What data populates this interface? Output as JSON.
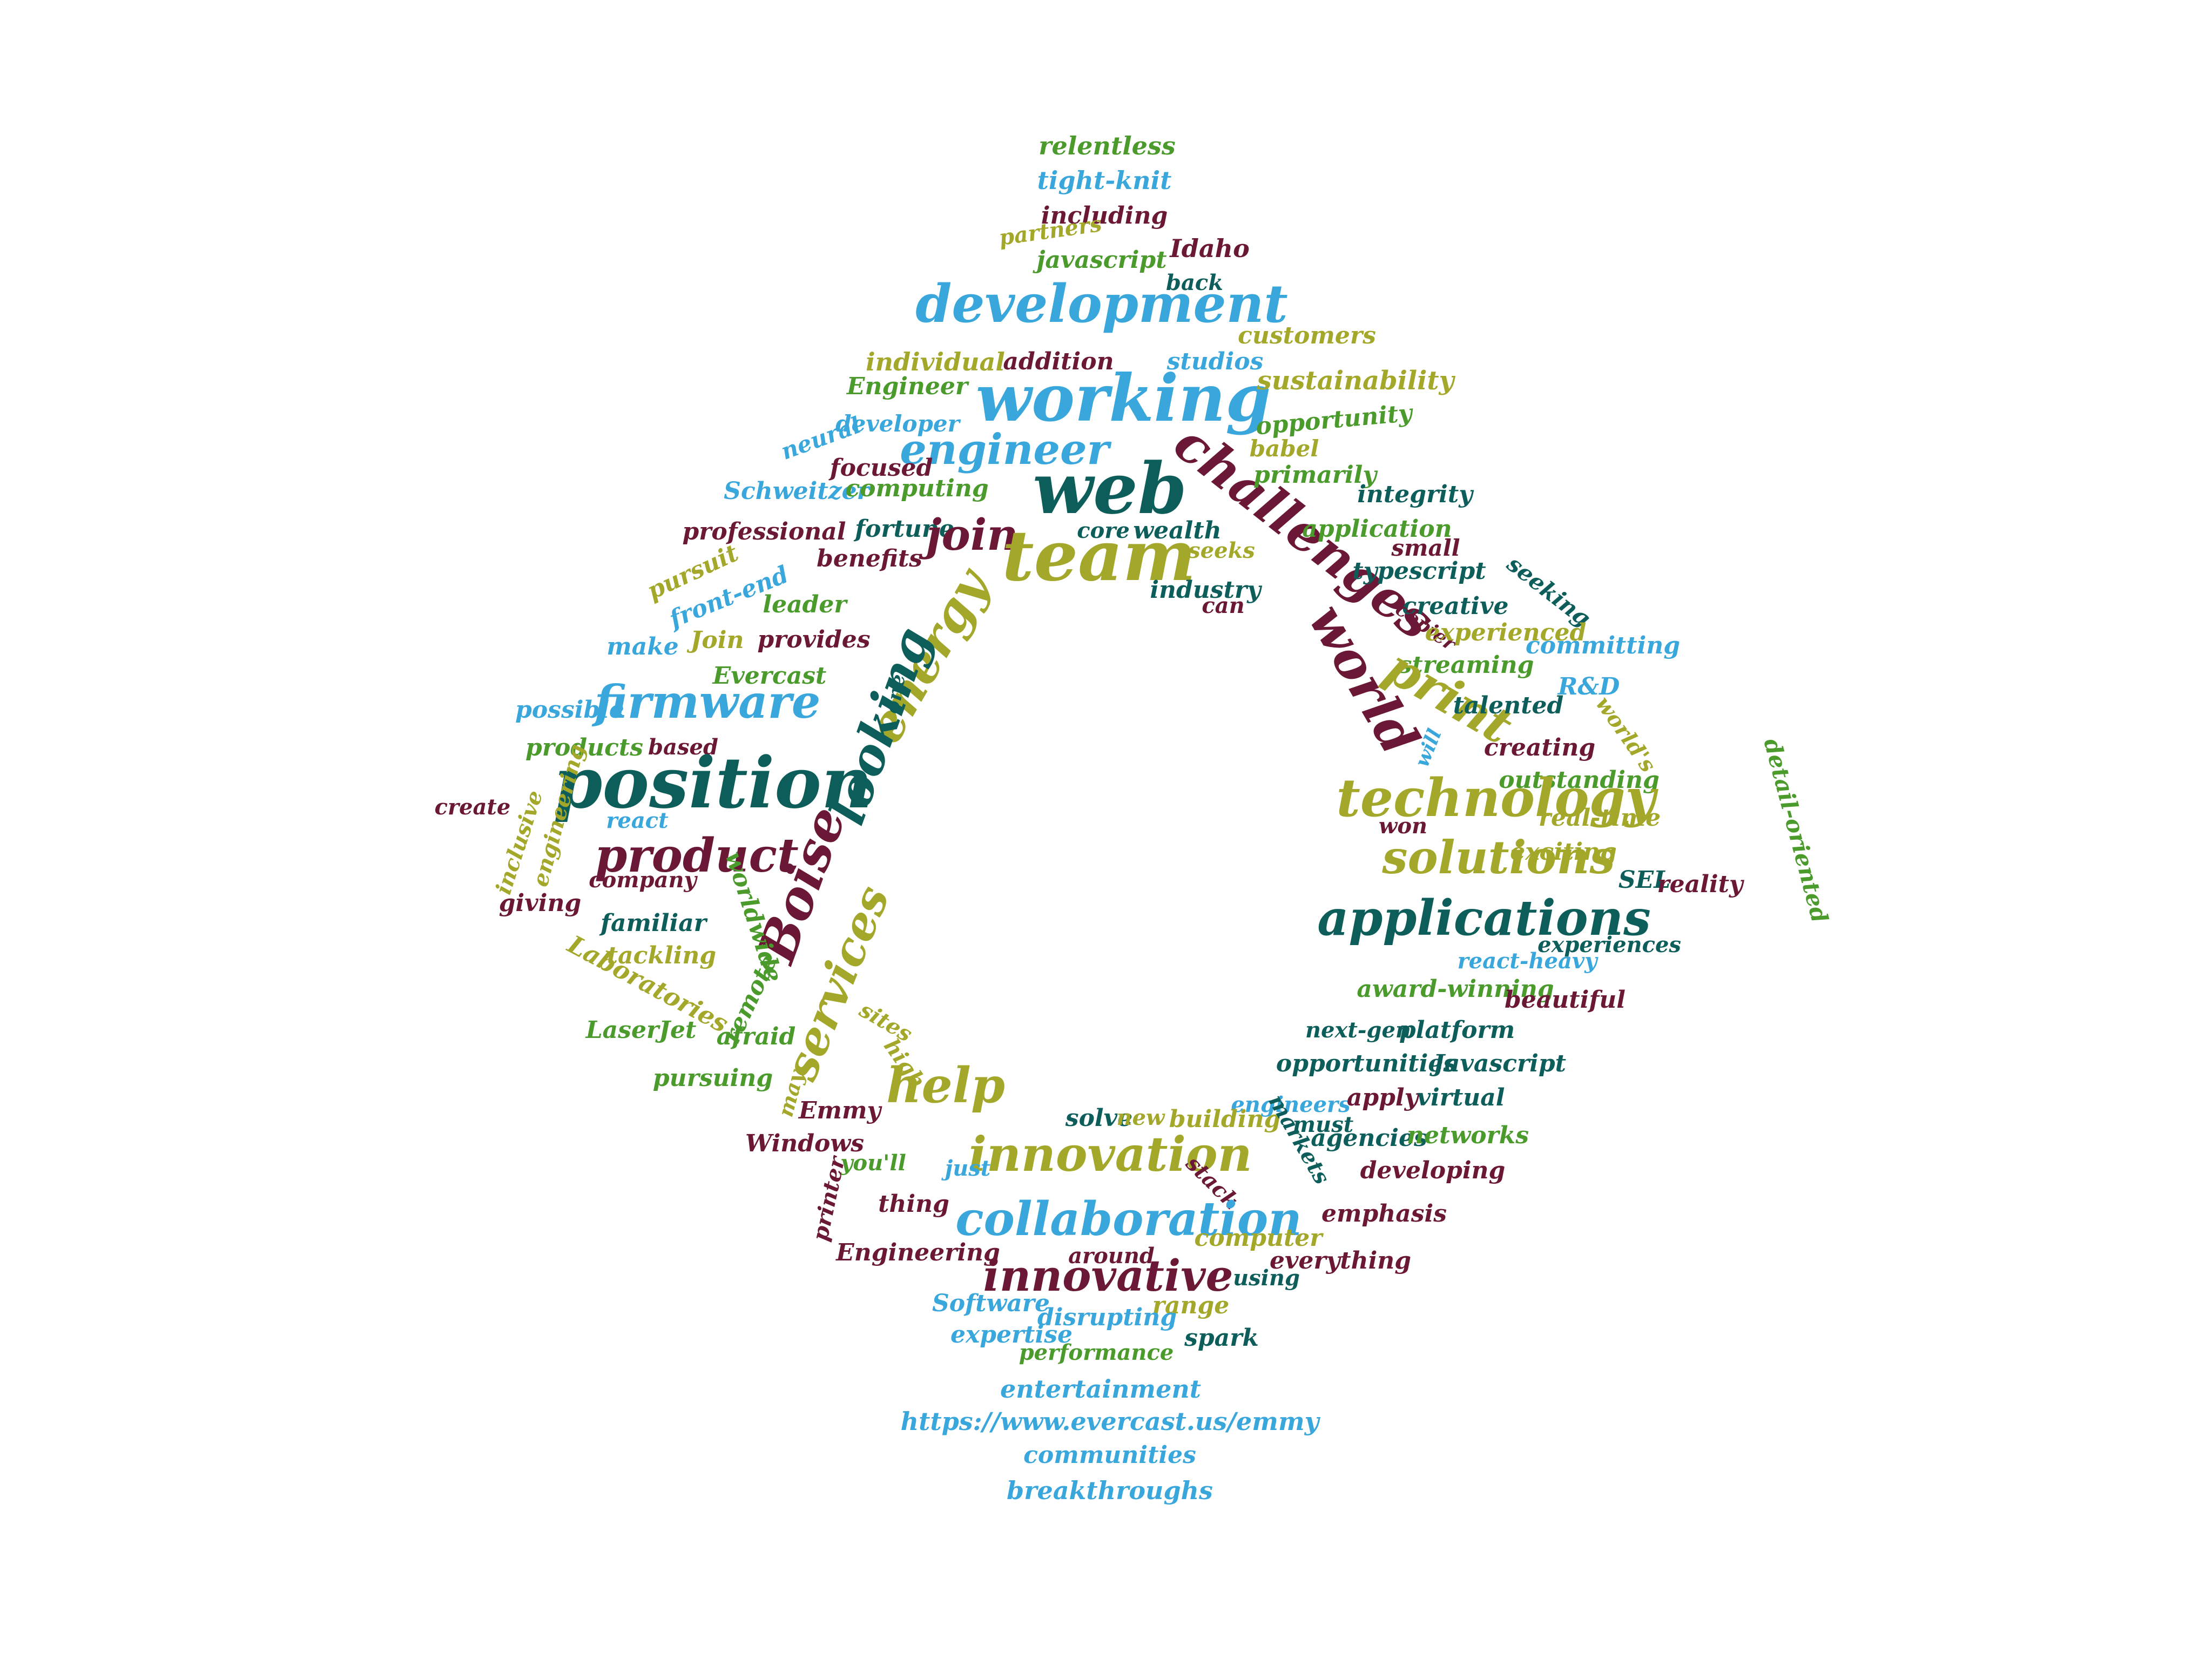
{
  "palette": {
    "teal": "#0d5e5a",
    "sky": "#3aa7dc",
    "olive": "#a3a82a",
    "green": "#4a9a2c",
    "maroon": "#6b1836"
  },
  "words": [
    {
      "text": "relentless",
      "color": "#4a9a2c"
    },
    {
      "text": "tight-knit",
      "color": "#3aa7dc"
    },
    {
      "text": "including",
      "color": "#6b1836"
    },
    {
      "text": "partners",
      "color": "#a3a82a"
    },
    {
      "text": "javascript",
      "color": "#4a9a2c"
    },
    {
      "text": "Idaho",
      "color": "#6b1836"
    },
    {
      "text": "back",
      "color": "#0d5e5a"
    },
    {
      "text": "development",
      "color": "#3aa7dc"
    },
    {
      "text": "customers",
      "color": "#a3a82a"
    },
    {
      "text": "individual",
      "color": "#a3a82a"
    },
    {
      "text": "addition",
      "color": "#6b1836"
    },
    {
      "text": "studios",
      "color": "#3aa7dc"
    },
    {
      "text": "Engineer",
      "color": "#4a9a2c"
    },
    {
      "text": "working",
      "color": "#3aa7dc"
    },
    {
      "text": "sustainability",
      "color": "#a3a82a"
    },
    {
      "text": "opportunity",
      "color": "#4a9a2c"
    },
    {
      "text": "developer",
      "color": "#3aa7dc"
    },
    {
      "text": "neural",
      "color": "#3aa7dc"
    },
    {
      "text": "engineer",
      "color": "#3aa7dc"
    },
    {
      "text": "babel",
      "color": "#a3a82a"
    },
    {
      "text": "focused",
      "color": "#6b1836"
    },
    {
      "text": "web",
      "color": "#0d5e5a"
    },
    {
      "text": "challenges",
      "color": "#6b1836"
    },
    {
      "text": "primarily",
      "color": "#4a9a2c"
    },
    {
      "text": "Schweitzer",
      "color": "#3aa7dc"
    },
    {
      "text": "computing",
      "color": "#4a9a2c"
    },
    {
      "text": "integrity",
      "color": "#0d5e5a"
    },
    {
      "text": "professional",
      "color": "#6b1836"
    },
    {
      "text": "fortune",
      "color": "#0d5e5a"
    },
    {
      "text": "join",
      "color": "#6b1836"
    },
    {
      "text": "application",
      "color": "#4a9a2c"
    },
    {
      "text": "small",
      "color": "#6b1836"
    },
    {
      "text": "core",
      "color": "#0d5e5a"
    },
    {
      "text": "wealth",
      "color": "#0d5e5a"
    },
    {
      "text": "team",
      "color": "#a3a82a"
    },
    {
      "text": "pursuit",
      "color": "#a3a82a"
    },
    {
      "text": "benefits",
      "color": "#6b1836"
    },
    {
      "text": "seeks",
      "color": "#a3a82a"
    },
    {
      "text": "typescript",
      "color": "#0d5e5a"
    },
    {
      "text": "seeking",
      "color": "#0d5e5a"
    },
    {
      "text": "front-end",
      "color": "#3aa7dc"
    },
    {
      "text": "industry",
      "color": "#0d5e5a"
    },
    {
      "text": "creative",
      "color": "#0d5e5a"
    },
    {
      "text": "leader",
      "color": "#4a9a2c"
    },
    {
      "text": "can",
      "color": "#6b1836"
    },
    {
      "text": "copier",
      "color": "#6b1836"
    },
    {
      "text": "Join",
      "color": "#a3a82a"
    },
    {
      "text": "provides",
      "color": "#6b1836"
    },
    {
      "text": "experienced",
      "color": "#a3a82a"
    },
    {
      "text": "committing",
      "color": "#3aa7dc"
    },
    {
      "text": "make",
      "color": "#3aa7dc"
    },
    {
      "text": "energy",
      "color": "#a3a82a"
    },
    {
      "text": "world",
      "color": "#6b1836"
    },
    {
      "text": "streaming",
      "color": "#4a9a2c"
    },
    {
      "text": "Evercast",
      "color": "#4a9a2c"
    },
    {
      "text": "print",
      "color": "#a3a82a"
    },
    {
      "text": "R&D",
      "color": "#3aa7dc"
    },
    {
      "text": "firmware",
      "color": "#3aa7dc"
    },
    {
      "text": "one",
      "color": "#0d5e5a"
    },
    {
      "text": "looking",
      "color": "#0d5e5a"
    },
    {
      "text": "talented",
      "color": "#0d5e5a"
    },
    {
      "text": "possible",
      "color": "#3aa7dc"
    },
    {
      "text": "world's",
      "color": "#a3a82a"
    },
    {
      "text": "products",
      "color": "#4a9a2c"
    },
    {
      "text": "based",
      "color": "#6b1836"
    },
    {
      "text": "will",
      "color": "#3aa7dc"
    },
    {
      "text": "creating",
      "color": "#6b1836"
    },
    {
      "text": "detail-oriented",
      "color": "#4a9a2c"
    },
    {
      "text": "position",
      "color": "#0d5e5a"
    },
    {
      "text": "engineering",
      "color": "#a3a82a"
    },
    {
      "text": "outstanding",
      "color": "#4a9a2c"
    },
    {
      "text": "technology",
      "color": "#a3a82a"
    },
    {
      "text": "create",
      "color": "#6b1836"
    },
    {
      "text": "inclusive",
      "color": "#a3a82a"
    },
    {
      "text": "real-time",
      "color": "#a3a82a"
    },
    {
      "text": "react",
      "color": "#3aa7dc"
    },
    {
      "text": "won",
      "color": "#6b1836"
    },
    {
      "text": "product",
      "color": "#6b1836"
    },
    {
      "text": "exciting",
      "color": "#a3a82a"
    },
    {
      "text": "solutions",
      "color": "#a3a82a"
    },
    {
      "text": "company",
      "color": "#6b1836"
    },
    {
      "text": "SEL",
      "color": "#0d5e5a"
    },
    {
      "text": "reality",
      "color": "#6b1836"
    },
    {
      "text": "giving",
      "color": "#6b1836"
    },
    {
      "text": "Boise",
      "color": "#6b1836"
    },
    {
      "text": "worldwide",
      "color": "#4a9a2c"
    },
    {
      "text": "applications",
      "color": "#0d5e5a"
    },
    {
      "text": "familiar",
      "color": "#0d5e5a"
    },
    {
      "text": "experiences",
      "color": "#0d5e5a"
    },
    {
      "text": "tackling",
      "color": "#a3a82a"
    },
    {
      "text": "react-heavy",
      "color": "#3aa7dc"
    },
    {
      "text": "Laboratories",
      "color": "#a3a82a"
    },
    {
      "text": "services",
      "color": "#a3a82a"
    },
    {
      "text": "remote",
      "color": "#4a9a2c"
    },
    {
      "text": "award-winning",
      "color": "#4a9a2c"
    },
    {
      "text": "beautiful",
      "color": "#6b1836"
    },
    {
      "text": "sites",
      "color": "#a3a82a"
    },
    {
      "text": "LaserJet",
      "color": "#4a9a2c"
    },
    {
      "text": "afraid",
      "color": "#4a9a2c"
    },
    {
      "text": "next-gen",
      "color": "#0d5e5a"
    },
    {
      "text": "platform",
      "color": "#0d5e5a"
    },
    {
      "text": "high",
      "color": "#a3a82a"
    },
    {
      "text": "opportunities",
      "color": "#0d5e5a"
    },
    {
      "text": "Javascript",
      "color": "#0d5e5a"
    },
    {
      "text": "pursuing",
      "color": "#4a9a2c"
    },
    {
      "text": "may",
      "color": "#a3a82a"
    },
    {
      "text": "help",
      "color": "#a3a82a"
    },
    {
      "text": "engineers",
      "color": "#3aa7dc"
    },
    {
      "text": "apply",
      "color": "#6b1836"
    },
    {
      "text": "virtual",
      "color": "#0d5e5a"
    },
    {
      "text": "Emmy",
      "color": "#6b1836"
    },
    {
      "text": "solve",
      "color": "#0d5e5a"
    },
    {
      "text": "new",
      "color": "#a3a82a"
    },
    {
      "text": "building",
      "color": "#a3a82a"
    },
    {
      "text": "must",
      "color": "#0d5e5a"
    },
    {
      "text": "Windows",
      "color": "#6b1836"
    },
    {
      "text": "innovation",
      "color": "#a3a82a"
    },
    {
      "text": "agencies",
      "color": "#0d5e5a"
    },
    {
      "text": "networks",
      "color": "#4a9a2c"
    },
    {
      "text": "markets",
      "color": "#0d5e5a"
    },
    {
      "text": "you'll",
      "color": "#4a9a2c"
    },
    {
      "text": "just",
      "color": "#3aa7dc"
    },
    {
      "text": "stack",
      "color": "#6b1836"
    },
    {
      "text": "developing",
      "color": "#6b1836"
    },
    {
      "text": "printer",
      "color": "#6b1836"
    },
    {
      "text": "thing",
      "color": "#6b1836"
    },
    {
      "text": "collaboration",
      "color": "#3aa7dc"
    },
    {
      "text": "emphasis",
      "color": "#6b1836"
    },
    {
      "text": "computer",
      "color": "#a3a82a"
    },
    {
      "text": "Engineering",
      "color": "#6b1836"
    },
    {
      "text": "around",
      "color": "#6b1836"
    },
    {
      "text": "innovative",
      "color": "#6b1836"
    },
    {
      "text": "everything",
      "color": "#6b1836"
    },
    {
      "text": "using",
      "color": "#0d5e5a"
    },
    {
      "text": "Software",
      "color": "#3aa7dc"
    },
    {
      "text": "range",
      "color": "#a3a82a"
    },
    {
      "text": "disrupting",
      "color": "#3aa7dc"
    },
    {
      "text": "expertise",
      "color": "#3aa7dc"
    },
    {
      "text": "spark",
      "color": "#0d5e5a"
    },
    {
      "text": "performance",
      "color": "#4a9a2c"
    },
    {
      "text": "entertainment",
      "color": "#3aa7dc"
    },
    {
      "text": "https://www.evercast.us/emmy",
      "color": "#3aa7dc"
    },
    {
      "text": "communities",
      "color": "#3aa7dc"
    },
    {
      "text": "breakthroughs",
      "color": "#3aa7dc"
    }
  ]
}
